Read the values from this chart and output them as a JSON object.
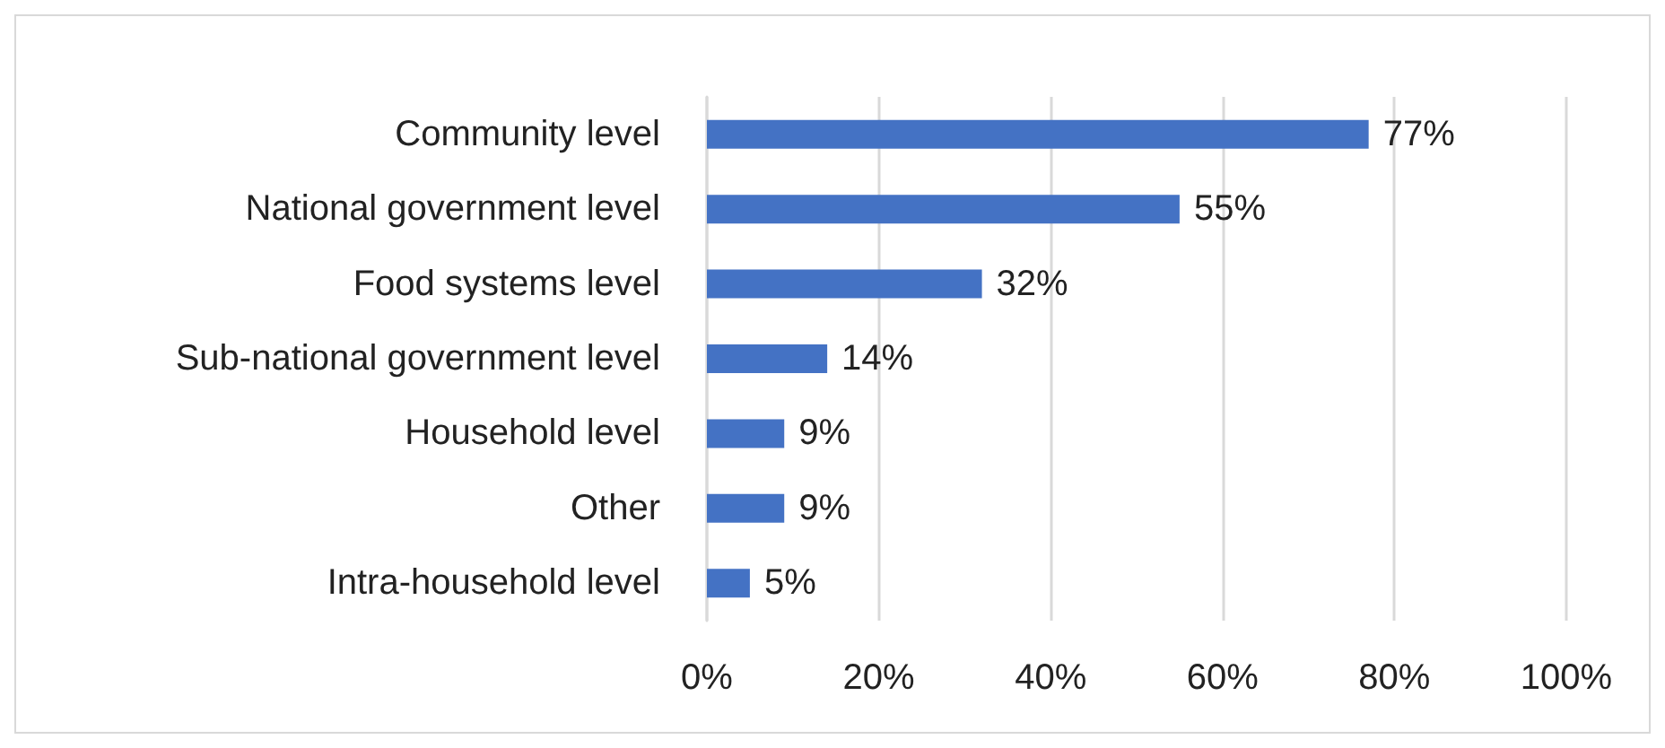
{
  "chart_data": {
    "type": "bar",
    "orientation": "horizontal",
    "categories": [
      "Community level",
      "National government level",
      "Food systems level",
      "Sub-national government level",
      "Household level",
      "Other",
      "Intra-household level"
    ],
    "values": [
      77,
      55,
      32,
      14,
      9,
      9,
      5
    ],
    "value_labels": [
      "77%",
      "55%",
      "32%",
      "14%",
      "9%",
      "9%",
      "5%"
    ],
    "color": "#4472c4",
    "xlim": [
      0,
      100
    ],
    "xticks": [
      {
        "value": 0,
        "label": "0%"
      },
      {
        "value": 20,
        "label": "20%"
      },
      {
        "value": 40,
        "label": "40%"
      },
      {
        "value": 60,
        "label": "60%"
      },
      {
        "value": 80,
        "label": "80%"
      },
      {
        "value": 100,
        "label": "100%"
      }
    ],
    "grid": "x"
  }
}
